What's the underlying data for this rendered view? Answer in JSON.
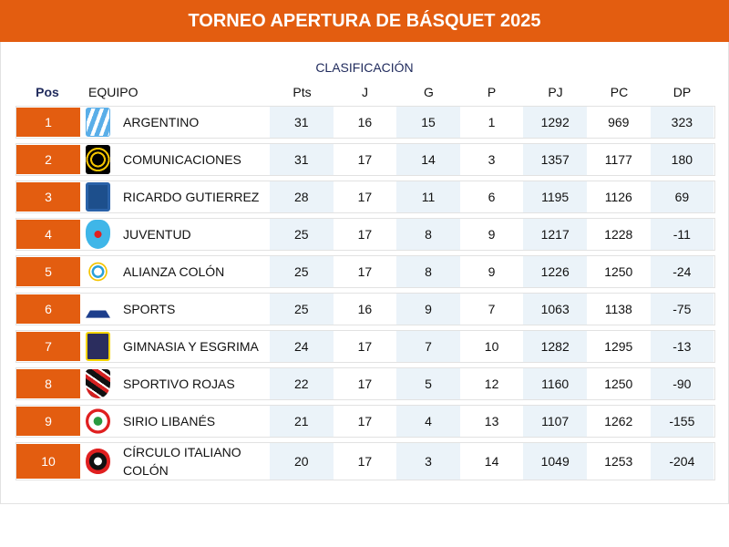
{
  "title": "TORNEO APERTURA DE BÁSQUET 2025",
  "subtitle": "CLASIFICACIÓN",
  "columns": {
    "pos": "Pos",
    "team": "EQUIPO",
    "pts": "Pts",
    "j": "J",
    "g": "G",
    "p": "P",
    "pj": "PJ",
    "pc": "PC",
    "dp": "DP"
  },
  "colors": {
    "accent": "#e35d10",
    "shade": "#ebf3f9",
    "subtitle": "#1f2a5c"
  },
  "rows": [
    {
      "pos": "1",
      "team": "ARGENTINO",
      "logo": "argentino-crest",
      "pts": "31",
      "j": "16",
      "g": "15",
      "p": "1",
      "pj": "1292",
      "pc": "969",
      "dp": "323"
    },
    {
      "pos": "2",
      "team": "COMUNICACIONES",
      "logo": "comunicaciones-crest",
      "pts": "31",
      "j": "17",
      "g": "14",
      "p": "3",
      "pj": "1357",
      "pc": "1177",
      "dp": "180"
    },
    {
      "pos": "3",
      "team": "RICARDO GUTIERREZ",
      "logo": "ricardo-gutierrez-crest",
      "pts": "28",
      "j": "17",
      "g": "11",
      "p": "6",
      "pj": "1195",
      "pc": "1126",
      "dp": "69"
    },
    {
      "pos": "4",
      "team": "JUVENTUD",
      "logo": "juventud-crest",
      "pts": "25",
      "j": "17",
      "g": "8",
      "p": "9",
      "pj": "1217",
      "pc": "1228",
      "dp": "-11"
    },
    {
      "pos": "5",
      "team": "ALIANZA COLÓN",
      "logo": "alianza-colon-crest",
      "pts": "25",
      "j": "17",
      "g": "8",
      "p": "9",
      "pj": "1226",
      "pc": "1250",
      "dp": "-24"
    },
    {
      "pos": "6",
      "team": "SPORTS",
      "logo": "sports-crest",
      "pts": "25",
      "j": "16",
      "g": "9",
      "p": "7",
      "pj": "1063",
      "pc": "1138",
      "dp": "-75"
    },
    {
      "pos": "7",
      "team": "GIMNASIA Y ESGRIMA",
      "logo": "gimnasia-crest",
      "pts": "24",
      "j": "17",
      "g": "7",
      "p": "10",
      "pj": "1282",
      "pc": "1295",
      "dp": "-13"
    },
    {
      "pos": "8",
      "team": "SPORTIVO ROJAS",
      "logo": "sportivo-rojas-crest",
      "pts": "22",
      "j": "17",
      "g": "5",
      "p": "12",
      "pj": "1160",
      "pc": "1250",
      "dp": "-90"
    },
    {
      "pos": "9",
      "team": "SIRIO LIBANÉS",
      "logo": "sirio-libanes-crest",
      "pts": "21",
      "j": "17",
      "g": "4",
      "p": "13",
      "pj": "1107",
      "pc": "1262",
      "dp": "-155"
    },
    {
      "pos": "10",
      "team": "CÍRCULO ITALIANO COLÓN",
      "logo": "circulo-italiano-crest",
      "pts": "20",
      "j": "17",
      "g": "3",
      "p": "14",
      "pj": "1049",
      "pc": "1253",
      "dp": "-204"
    }
  ]
}
